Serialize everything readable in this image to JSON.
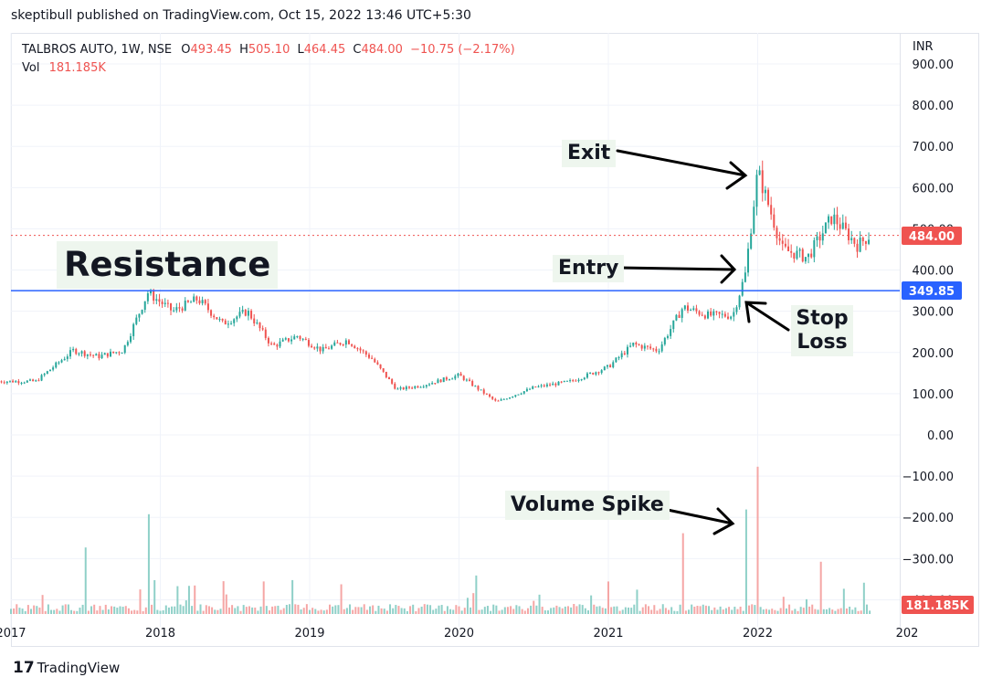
{
  "header": {
    "publish_line": "skeptibull published on TradingView.com, Oct 15, 2022 13:46 UTC+5:30"
  },
  "legend": {
    "symbol": "TALBROS AUTO, 1W, NSE",
    "open_label": "O",
    "open": "493.45",
    "high_label": "H",
    "high": "505.10",
    "low_label": "L",
    "low": "464.45",
    "close_label": "C",
    "close": "484.00",
    "change": "−10.75 (−2.17%)",
    "vol_label": "Vol",
    "vol": "181.185K"
  },
  "price_axis": {
    "currency": "INR",
    "ticks": [
      "900.00",
      "800.00",
      "700.00",
      "600.00",
      "500.00",
      "400.00",
      "300.00",
      "200.00",
      "100.00",
      "0.00",
      "−100.00",
      "−200.00",
      "−300.00",
      "−400.00"
    ],
    "last_price_label": "484.00",
    "hline_label": "349.85",
    "vol_label": "181.185K"
  },
  "time_axis": {
    "ticks": [
      "2017",
      "2018",
      "2019",
      "2020",
      "2021",
      "2022",
      "202"
    ]
  },
  "annotations": {
    "resistance": "Resistance",
    "exit": "Exit",
    "entry": "Entry",
    "stop_loss_line1": "Stop",
    "stop_loss_line2": "Loss",
    "volume_spike": "Volume Spike"
  },
  "footer": {
    "brand": "TradingView",
    "logo_glyph": "17"
  },
  "colors": {
    "up": "#26a69a",
    "down": "#ef5350",
    "hline": "#2962ff",
    "grid": "#f0f3fa",
    "last_price": "#ef5350"
  },
  "chart_data": {
    "type": "candlestick",
    "symbol": "TALBROS AUTO",
    "interval": "1W",
    "exchange": "NSE",
    "ylim": [
      -450,
      920
    ],
    "x_range": [
      "2017-01",
      "2022-12"
    ],
    "horizontal_line": 349.85,
    "last_close": 484.0,
    "price_path": [
      {
        "date": "2016-12",
        "price": 130
      },
      {
        "date": "2017-03",
        "price": 130
      },
      {
        "date": "2017-06",
        "price": 205
      },
      {
        "date": "2017-08",
        "price": 190
      },
      {
        "date": "2017-10",
        "price": 205
      },
      {
        "date": "2017-12",
        "price": 345
      },
      {
        "date": "2018-02",
        "price": 300
      },
      {
        "date": "2018-04",
        "price": 330
      },
      {
        "date": "2018-06",
        "price": 270
      },
      {
        "date": "2018-08",
        "price": 300
      },
      {
        "date": "2018-10",
        "price": 215
      },
      {
        "date": "2018-12",
        "price": 240
      },
      {
        "date": "2019-02",
        "price": 205
      },
      {
        "date": "2019-04",
        "price": 230
      },
      {
        "date": "2019-06",
        "price": 185
      },
      {
        "date": "2019-08",
        "price": 110
      },
      {
        "date": "2019-10",
        "price": 120
      },
      {
        "date": "2020-01",
        "price": 145
      },
      {
        "date": "2020-04",
        "price": 80
      },
      {
        "date": "2020-07",
        "price": 115
      },
      {
        "date": "2020-10",
        "price": 130
      },
      {
        "date": "2021-01",
        "price": 165
      },
      {
        "date": "2021-03",
        "price": 220
      },
      {
        "date": "2021-05",
        "price": 205
      },
      {
        "date": "2021-07",
        "price": 310
      },
      {
        "date": "2021-09",
        "price": 290
      },
      {
        "date": "2021-11",
        "price": 290
      },
      {
        "date": "2021-12",
        "price": 390
      },
      {
        "date": "2022-01",
        "price": 640
      },
      {
        "date": "2022-03",
        "price": 450
      },
      {
        "date": "2022-05",
        "price": 430
      },
      {
        "date": "2022-07",
        "price": 530
      },
      {
        "date": "2022-09",
        "price": 460
      },
      {
        "date": "2022-10",
        "price": 484
      }
    ],
    "volume_spikes_k": [
      {
        "date": "2017-07",
        "volume": 1400
      },
      {
        "date": "2017-12",
        "volume": 2100
      },
      {
        "date": "2021-07",
        "volume": 1700
      },
      {
        "date": "2021-12",
        "volume": 2200
      },
      {
        "date": "2022-01",
        "volume": 3100
      },
      {
        "date": "2022-06",
        "volume": 1100
      }
    ]
  }
}
